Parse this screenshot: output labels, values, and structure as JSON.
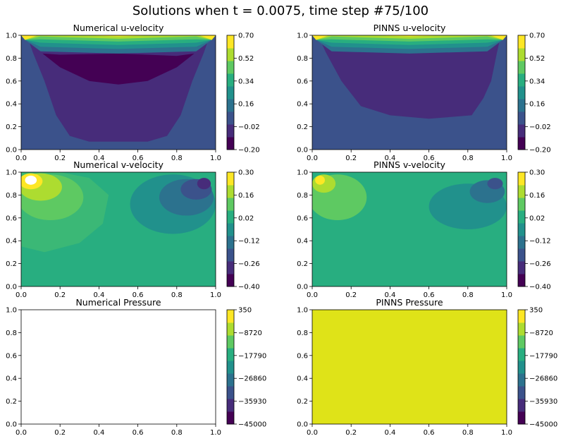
{
  "figure": {
    "title": "Solutions when t = 0.0075, time step #75/100"
  },
  "colormap": [
    "#440154",
    "#472c7a",
    "#3b528b",
    "#2c728e",
    "#21918c",
    "#28ae80",
    "#5ec962",
    "#addc30",
    "#fde725"
  ],
  "chart_data": [
    {
      "type": "heatmap",
      "title": "Numerical u-velocity",
      "xlim": [
        0,
        1
      ],
      "ylim": [
        0,
        1
      ],
      "xticks": [
        "0.0",
        "0.2",
        "0.4",
        "0.6",
        "0.8",
        "1.0"
      ],
      "yticks": [
        "0.0",
        "0.2",
        "0.4",
        "0.6",
        "0.8",
        "1.0"
      ],
      "colorbar_range": [
        -0.2,
        0.7
      ],
      "colorbar_ticks": [
        "−0.20",
        "−0.02",
        "0.16",
        "0.34",
        "0.52",
        "0.70"
      ],
      "field": "u-velocity",
      "source": "numerical"
    },
    {
      "type": "heatmap",
      "title": "PINNS u-velocity",
      "xlim": [
        0,
        1
      ],
      "ylim": [
        0,
        1
      ],
      "xticks": [
        "0.0",
        "0.2",
        "0.4",
        "0.6",
        "0.8",
        "1.0"
      ],
      "yticks": [
        "0.0",
        "0.2",
        "0.4",
        "0.6",
        "0.8",
        "1.0"
      ],
      "colorbar_range": [
        -0.2,
        0.7
      ],
      "colorbar_ticks": [
        "−0.20",
        "−0.02",
        "0.16",
        "0.34",
        "0.52",
        "0.70"
      ],
      "field": "u-velocity",
      "source": "pinns"
    },
    {
      "type": "heatmap",
      "title": "Numerical v-velocity",
      "xlim": [
        0,
        1
      ],
      "ylim": [
        0,
        1
      ],
      "xticks": [
        "0.0",
        "0.2",
        "0.4",
        "0.6",
        "0.8",
        "1.0"
      ],
      "yticks": [
        "0.0",
        "0.2",
        "0.4",
        "0.6",
        "0.8",
        "1.0"
      ],
      "colorbar_range": [
        -0.4,
        0.3
      ],
      "colorbar_ticks": [
        "−0.40",
        "−0.26",
        "−0.12",
        "0.02",
        "0.16",
        "0.30"
      ],
      "field": "v-velocity",
      "source": "numerical"
    },
    {
      "type": "heatmap",
      "title": "PINNS v-velocity",
      "xlim": [
        0,
        1
      ],
      "ylim": [
        0,
        1
      ],
      "xticks": [
        "0.0",
        "0.2",
        "0.4",
        "0.6",
        "0.8",
        "1.0"
      ],
      "yticks": [
        "0.0",
        "0.2",
        "0.4",
        "0.6",
        "0.8",
        "1.0"
      ],
      "colorbar_range": [
        -0.4,
        0.3
      ],
      "colorbar_ticks": [
        "−0.40",
        "−0.26",
        "−0.12",
        "0.02",
        "0.16",
        "0.30"
      ],
      "field": "v-velocity",
      "source": "pinns"
    },
    {
      "type": "heatmap",
      "title": "Numerical Pressure",
      "xlim": [
        0,
        1
      ],
      "ylim": [
        0,
        1
      ],
      "xticks": [
        "0.0",
        "0.2",
        "0.4",
        "0.6",
        "0.8",
        "1.0"
      ],
      "yticks": [
        "0.0",
        "0.2",
        "0.4",
        "0.6",
        "0.8",
        "1.0"
      ],
      "colorbar_range": [
        -45000,
        350
      ],
      "colorbar_ticks": [
        "−45000",
        "−35930",
        "−26860",
        "−17790",
        "−8720",
        "350"
      ],
      "field": "pressure",
      "source": "numerical",
      "fill": "none"
    },
    {
      "type": "heatmap",
      "title": "PINNS Pressure",
      "xlim": [
        0,
        1
      ],
      "ylim": [
        0,
        1
      ],
      "xticks": [
        "0.0",
        "0.2",
        "0.4",
        "0.6",
        "0.8",
        "1.0"
      ],
      "yticks": [
        "0.0",
        "0.2",
        "0.4",
        "0.6",
        "0.8",
        "1.0"
      ],
      "colorbar_range": [
        -45000,
        350
      ],
      "colorbar_ticks": [
        "−45000",
        "−35930",
        "−26860",
        "−17790",
        "−8720",
        "350"
      ],
      "field": "pressure",
      "source": "pinns",
      "fill": "#dfe318"
    }
  ]
}
